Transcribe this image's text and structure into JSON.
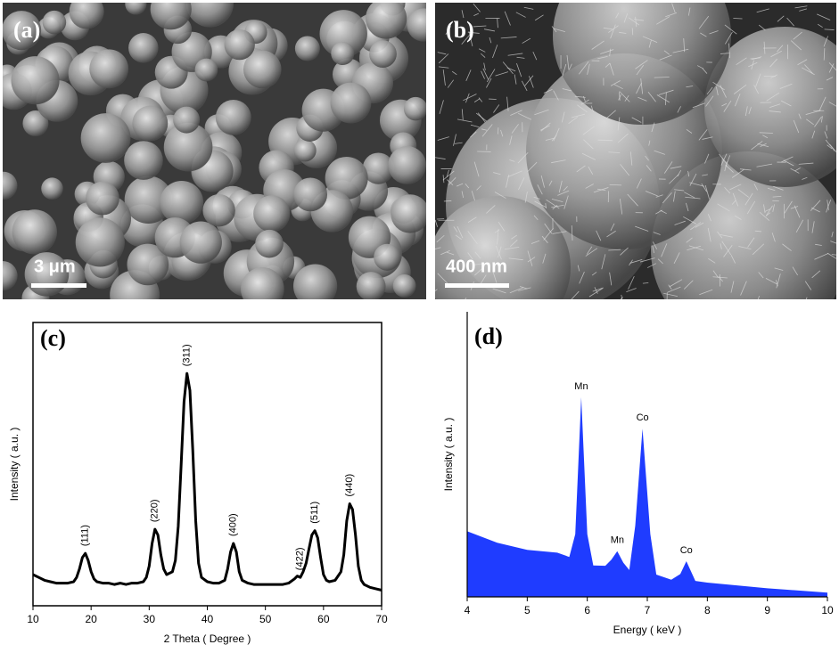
{
  "panels": [
    {
      "label": "(a)",
      "scale_bar": "3 μm"
    },
    {
      "label": "(b)",
      "scale_bar": "400 nm"
    }
  ],
  "chart_data": [
    {
      "type": "line",
      "label": "(c)",
      "xlabel": "2 Theta ( Degree )",
      "ylabel": "Intensity ( a.u. )",
      "color": "#000000",
      "xlim": [
        10,
        70
      ],
      "xticks": [
        10,
        20,
        30,
        40,
        50,
        60,
        70
      ],
      "ylim": [
        0,
        100
      ],
      "x": [
        10,
        11,
        12,
        13,
        14,
        15,
        16,
        17,
        17.5,
        18,
        18.5,
        19,
        19.5,
        20,
        20.5,
        21,
        22,
        23,
        24,
        25,
        26,
        27,
        28,
        29,
        29.5,
        30,
        30.5,
        31,
        31.5,
        32,
        32.5,
        33,
        34,
        34.5,
        35,
        35.5,
        36,
        36.5,
        37,
        37.5,
        38,
        38.5,
        39,
        40,
        41,
        42,
        43,
        43.5,
        44,
        44.5,
        45,
        45.5,
        46,
        47,
        48,
        49,
        50,
        51,
        52,
        53,
        54,
        55,
        55.5,
        56,
        56.5,
        57,
        57.5,
        58,
        58.5,
        59,
        59.5,
        60,
        60.5,
        61,
        62,
        63,
        63.5,
        64,
        64.5,
        65,
        65.5,
        66,
        66.5,
        67,
        68,
        69,
        70
      ],
      "values": [
        11,
        10,
        9,
        8.5,
        8,
        8,
        8,
        8.5,
        10,
        13,
        17,
        18.5,
        16,
        12,
        9.5,
        8.5,
        8,
        8,
        7.5,
        8,
        7.5,
        8,
        8,
        8.5,
        10,
        14,
        22,
        27,
        25,
        18,
        13,
        11,
        12,
        16,
        28,
        50,
        72,
        82,
        76,
        55,
        30,
        15,
        10,
        8.5,
        8,
        8,
        9,
        13,
        19,
        22,
        19,
        12,
        9,
        8,
        7.5,
        7.5,
        7.5,
        7.5,
        7.5,
        7.5,
        8,
        9.5,
        10.5,
        10,
        12,
        15,
        20,
        25,
        26.5,
        24,
        17,
        11,
        9,
        8.5,
        9,
        12,
        18,
        30,
        36,
        34,
        25,
        14,
        9,
        7.5,
        6.5,
        6,
        5.5
      ],
      "annotations": [
        {
          "text": "(111)",
          "x": 19
        },
        {
          "text": "(220)",
          "x": 31
        },
        {
          "text": "(311)",
          "x": 36.5
        },
        {
          "text": "(400)",
          "x": 44.5
        },
        {
          "text": "(422)",
          "x": 56
        },
        {
          "text": "(511)",
          "x": 58.5
        },
        {
          "text": "(440)",
          "x": 64.5
        }
      ]
    },
    {
      "type": "area",
      "label": "(d)",
      "xlabel": "Energy ( keV )",
      "ylabel": "Intensity ( a.u. )",
      "color": "#1f3cff",
      "xlim": [
        4,
        10
      ],
      "xticks": [
        4,
        5,
        6,
        7,
        8,
        9,
        10
      ],
      "ylim": [
        0,
        100
      ],
      "x": [
        4,
        4.5,
        5,
        5.5,
        5.7,
        5.8,
        5.9,
        6.0,
        6.1,
        6.3,
        6.4,
        6.5,
        6.6,
        6.7,
        6.8,
        6.92,
        7.05,
        7.15,
        7.4,
        7.55,
        7.65,
        7.8,
        8,
        9,
        10
      ],
      "values": [
        23,
        19,
        16.5,
        15.5,
        14,
        22,
        70,
        22,
        11,
        10.9,
        13,
        16,
        12,
        9.4,
        25,
        59,
        22,
        7.8,
        6,
        8,
        12.5,
        5.6,
        5,
        3,
        1.5
      ],
      "annotations": [
        {
          "text": "Mn",
          "x": 5.9
        },
        {
          "text": "Mn",
          "x": 6.5
        },
        {
          "text": "Co",
          "x": 6.92
        },
        {
          "text": "Co",
          "x": 7.65
        }
      ]
    }
  ]
}
